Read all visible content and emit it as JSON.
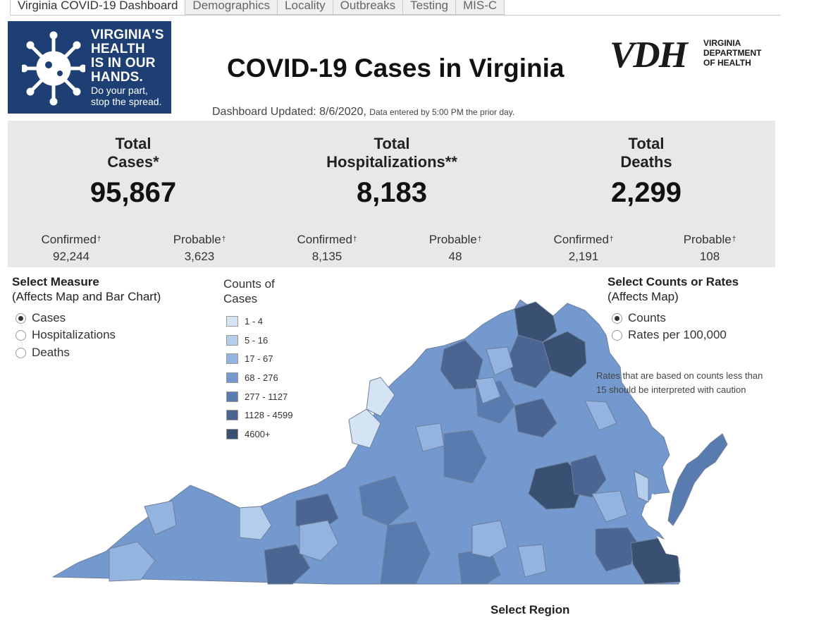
{
  "tabs": [
    "Virginia COVID-19 Dashboard",
    "Demographics",
    "Locality",
    "Outbreaks",
    "Testing",
    "MIS-C"
  ],
  "logo": {
    "line1": "VIRGINIA'S",
    "line2": "HEALTH",
    "line3": "IS IN OUR",
    "line4": "HANDS.",
    "line5": "Do your part,",
    "line6": "stop the spread."
  },
  "title": "COVID-19 Cases in Virginia",
  "vdh": {
    "abbr": "VDH",
    "line1": "VIRGINIA",
    "line2": "DEPARTMENT",
    "line3": "OF HEALTH"
  },
  "updated": {
    "main": "Dashboard Updated: 8/6/2020,",
    "note": "Data entered by 5:00 PM the prior day."
  },
  "stats": {
    "cases": {
      "h1": "Total",
      "h2": "Cases*",
      "value": "95,867",
      "confirmed_label": "Confirmed",
      "confirmed": "92,244",
      "probable_label": "Probable",
      "probable": "3,623"
    },
    "hosp": {
      "h1": "Total",
      "h2": "Hospitalizations**",
      "value": "8,183",
      "confirmed_label": "Confirmed",
      "confirmed": "8,135",
      "probable_label": "Probable",
      "probable": "48"
    },
    "deaths": {
      "h1": "Total",
      "h2": "Deaths",
      "value": "2,299",
      "confirmed_label": "Confirmed",
      "confirmed": "2,191",
      "probable_label": "Probable",
      "probable": "108"
    },
    "dagger": "†"
  },
  "measure": {
    "title": "Select Measure",
    "subtitle": "(Affects Map and Bar Chart)",
    "options": [
      "Cases",
      "Hospitalizations",
      "Deaths"
    ],
    "selected": "Cases"
  },
  "legend": {
    "title1": "Counts of",
    "title2": "Cases",
    "items": [
      {
        "label": "1 - 4",
        "color": "#d4e4f4"
      },
      {
        "label": "5 - 16",
        "color": "#b3cdeb"
      },
      {
        "label": "17 - 67",
        "color": "#93b4e0"
      },
      {
        "label": "68 - 276",
        "color": "#7399cf"
      },
      {
        "label": "277 - 1127",
        "color": "#587cb0"
      },
      {
        "label": "1128 - 4599",
        "color": "#4a6591"
      },
      {
        "label": "4600+",
        "color": "#3a5072"
      }
    ]
  },
  "rates": {
    "title": "Select Counts or Rates",
    "subtitle": "(Affects Map)",
    "options": [
      "Counts",
      "Rates per 100,000"
    ],
    "selected": "Counts",
    "caution": "Rates that are based on counts less than 15 should be interpreted with caution"
  },
  "region": {
    "title": "Select Region"
  }
}
